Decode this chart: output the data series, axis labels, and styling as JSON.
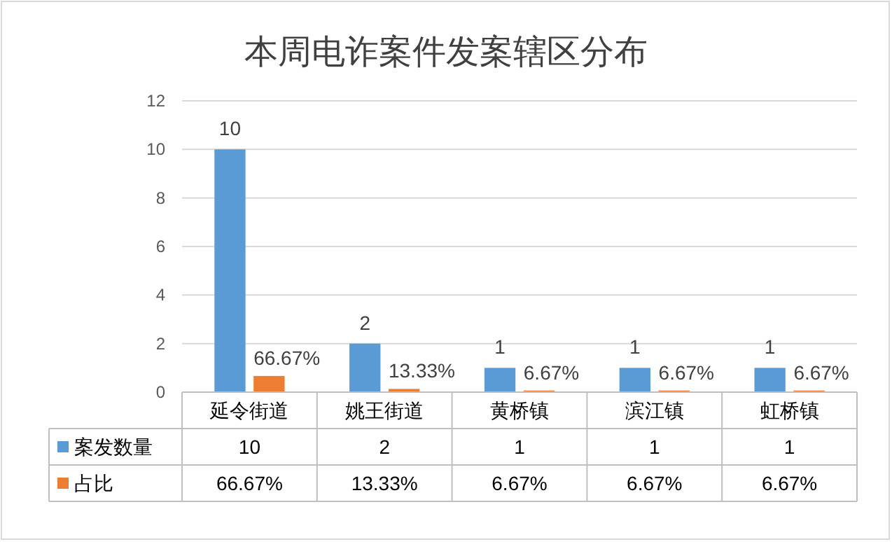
{
  "chart_data": {
    "type": "bar",
    "title": "本周电诈案件发案辖区分布",
    "categories": [
      "延令街道",
      "姚王街道",
      "黄桥镇",
      "滨江镇",
      "虹桥镇"
    ],
    "series": [
      {
        "name": "案发数量",
        "color": "#5b9bd5",
        "values": [
          10,
          2,
          1,
          1,
          1
        ],
        "value_labels": [
          "10",
          "2",
          "1",
          "1",
          "1"
        ]
      },
      {
        "name": "占比",
        "color": "#ed7d31",
        "values": [
          0.6667,
          0.1333,
          0.0667,
          0.0667,
          0.0667
        ],
        "value_labels": [
          "66.67%",
          "13.33%",
          "6.67%",
          "6.67%",
          "6.67%"
        ]
      }
    ],
    "ylim": [
      0,
      12
    ],
    "yticks": [
      0,
      2,
      4,
      6,
      8,
      10,
      12
    ],
    "grid": "y",
    "legend": "bottom"
  }
}
